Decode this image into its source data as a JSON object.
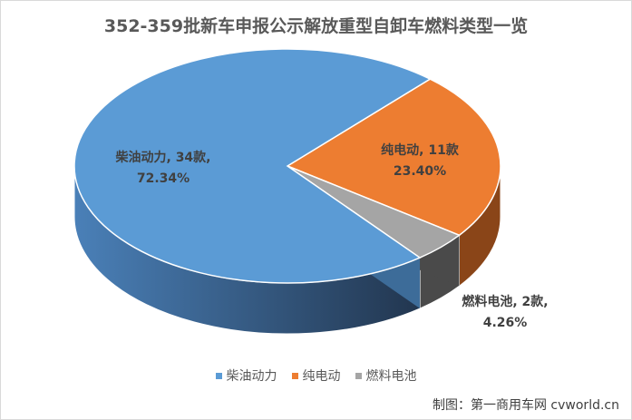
{
  "chart_data": {
    "type": "pie",
    "title": "352-359批新车申报公示解放重型自卸车燃料类型一览",
    "slices": [
      {
        "name": "柴油动力",
        "count_label": "34款",
        "value": 34,
        "percent": "72.34%",
        "color": "#5b9bd5",
        "side_color": "#3d6c99"
      },
      {
        "name": "纯电动",
        "count_label": "11款",
        "value": 11,
        "percent": "23.40%",
        "color": "#ed7d31",
        "side_color": "#8a4518"
      },
      {
        "name": "燃料电池",
        "count_label": "2款",
        "value": 2,
        "percent": "4.26%",
        "color": "#a5a5a5",
        "side_color": "#4a4a4a"
      }
    ],
    "legend_position": "bottom"
  },
  "credit": "制图：第一商用车网 cvworld.cn"
}
